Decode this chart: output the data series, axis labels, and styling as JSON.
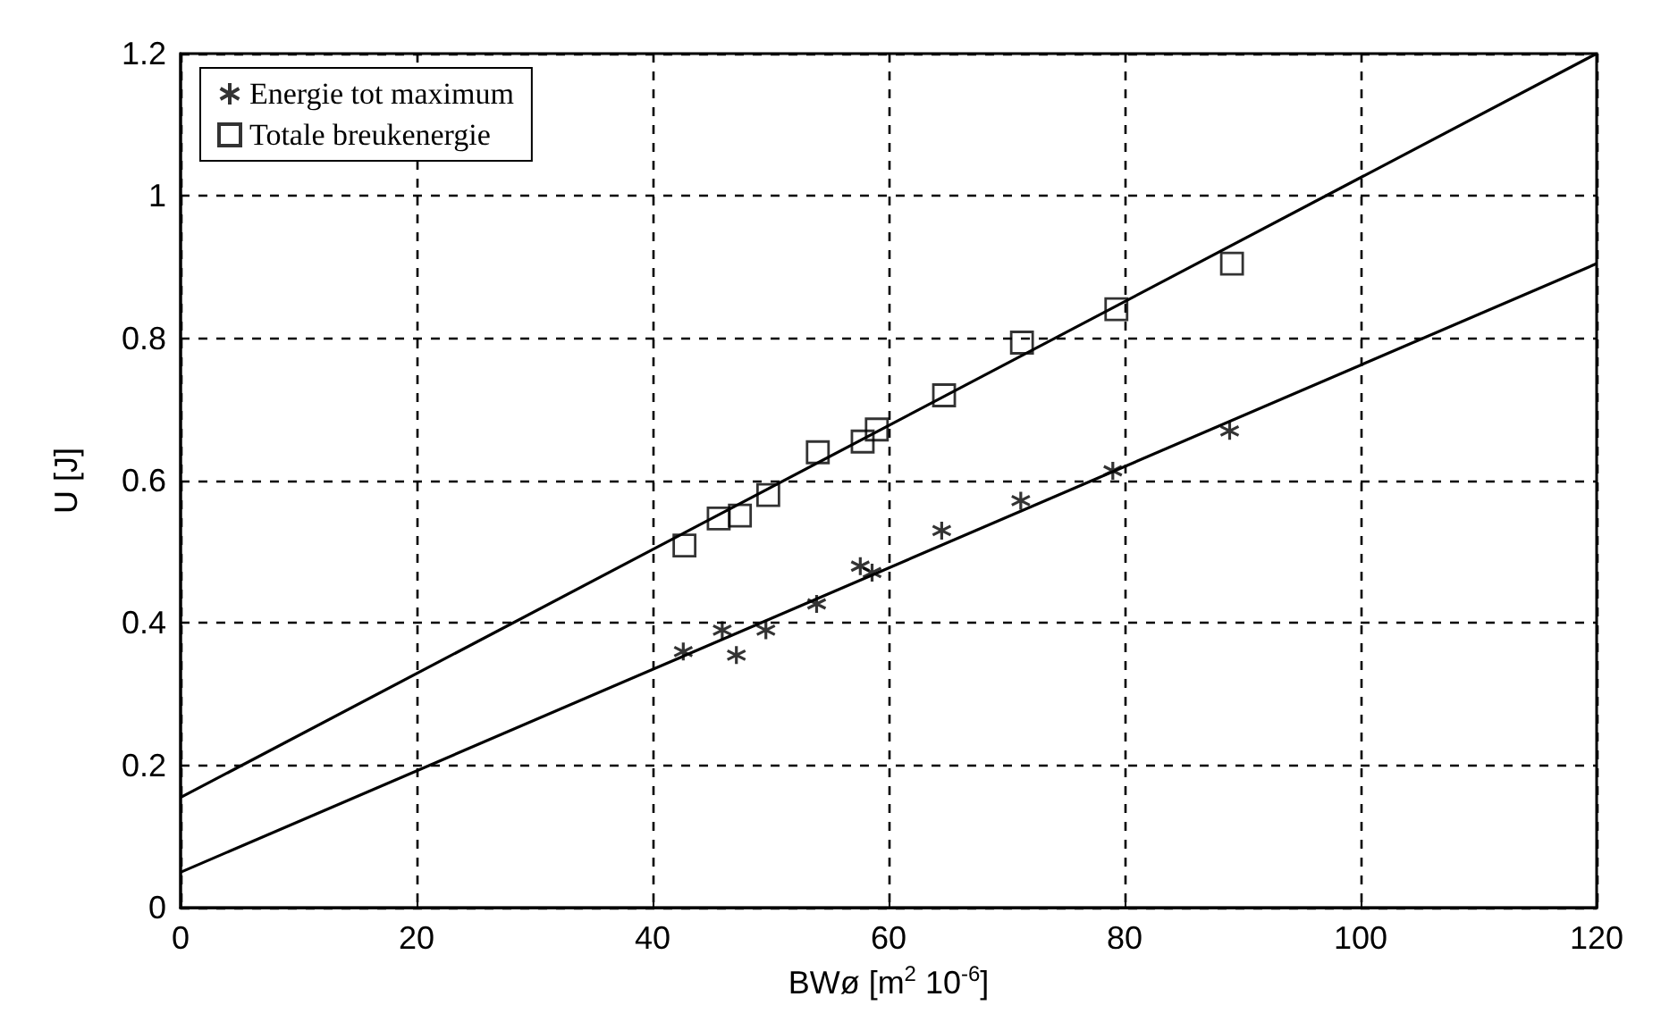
{
  "chart_data": {
    "type": "scatter",
    "xlabel": "BWø [m$^{2}$ 10$^{-6}$]",
    "ylabel": "U [J]",
    "xlim": [
      0,
      120
    ],
    "ylim": [
      0,
      1.2
    ],
    "xticks": [
      0,
      20,
      40,
      60,
      80,
      100,
      120
    ],
    "yticks": [
      0,
      0.2,
      0.4,
      0.6,
      0.8,
      1,
      1.2
    ],
    "grid": true,
    "legend": "top left",
    "series": [
      {
        "name": "Energie tot maximum",
        "color": "#000000",
        "marker": "cross",
        "x": [
          42.6,
          45.9,
          47.1,
          49.6,
          53.9,
          57.6,
          58.6,
          64.5,
          71.2,
          79.0,
          88.9
        ],
        "values": [
          0.36,
          0.39,
          0.355,
          0.39,
          0.427,
          0.48,
          0.471,
          0.53,
          0.572,
          0.614,
          0.67
        ]
      },
      {
        "name": "Totale breukenergie",
        "color": "#000000",
        "marker": "square",
        "x": [
          42.7,
          45.6,
          47.4,
          49.8,
          54.0,
          57.8,
          59.0,
          64.7,
          71.3,
          79.3,
          89.1
        ],
        "values": [
          0.509,
          0.547,
          0.551,
          0.58,
          0.64,
          0.655,
          0.672,
          0.72,
          0.794,
          0.841,
          0.905
        ]
      },
      {
        "type": "line",
        "color": "#000000",
        "x": [
          0,
          120
        ],
        "values": [
          0.05,
          0.905
        ]
      },
      {
        "type": "line",
        "color": "#000000",
        "x": [
          0,
          120
        ],
        "values": [
          0.155,
          1.2
        ]
      }
    ]
  }
}
